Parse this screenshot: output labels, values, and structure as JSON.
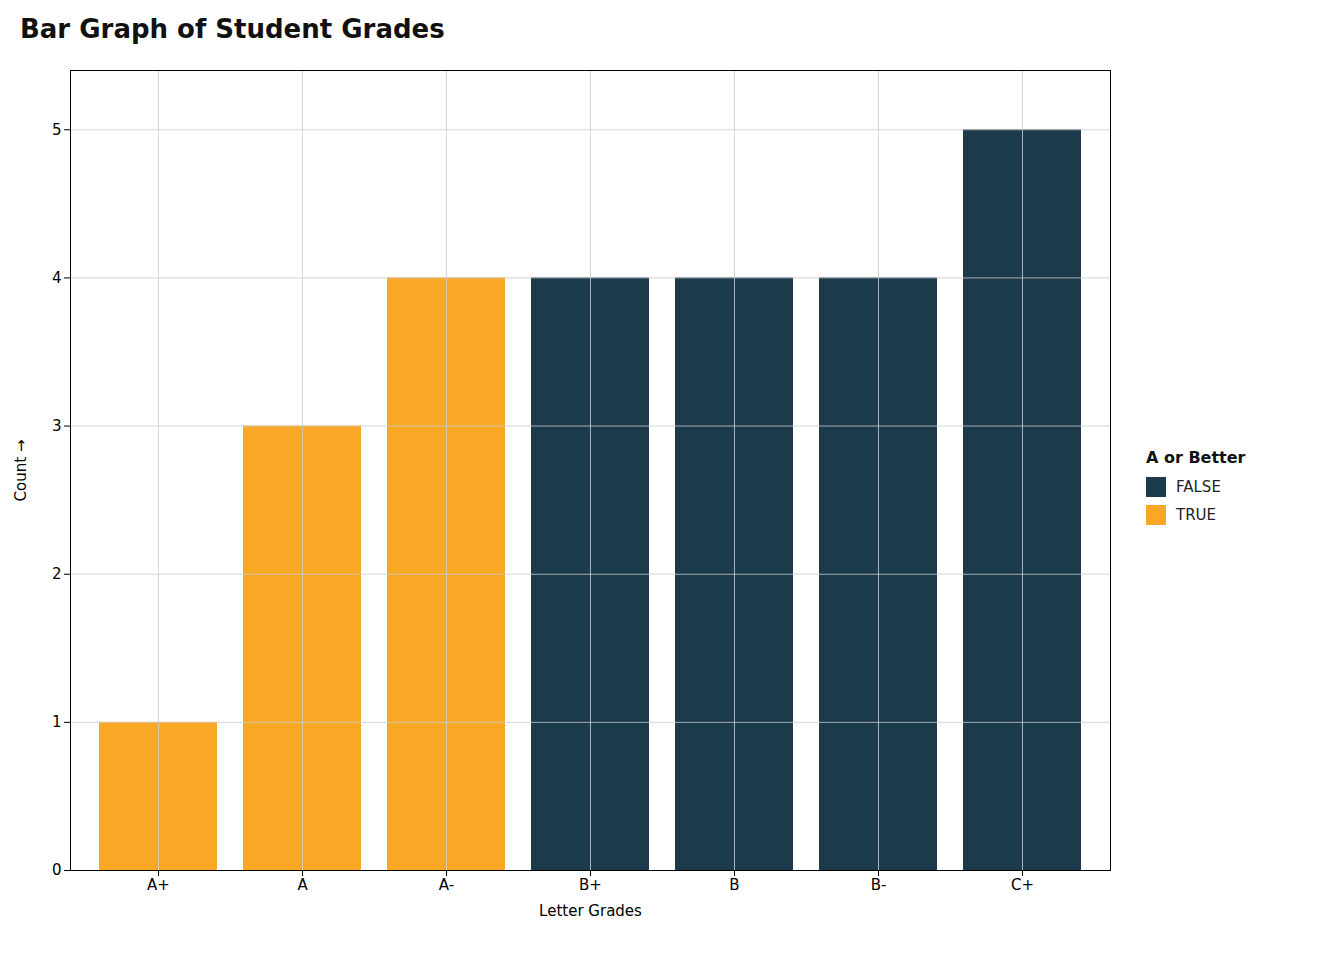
{
  "chart_data": {
    "type": "bar",
    "title": "Bar Graph of Student Grades",
    "xlabel": "Letter Grades",
    "ylabel": "Count",
    "categories": [
      "A+",
      "A",
      "A-",
      "B+",
      "B",
      "B-",
      "C+"
    ],
    "values": [
      1,
      3,
      4,
      4,
      4,
      4,
      5
    ],
    "colors": [
      "#F9A825",
      "#F9A825",
      "#F9A825",
      "#1B3A4B",
      "#1B3A4B",
      "#1B3A4B",
      "#1B3A4B"
    ],
    "ylim": [
      0,
      5.4
    ],
    "yticks": [
      0,
      1,
      2,
      3,
      4,
      5
    ],
    "grid": true,
    "legend": "right",
    "legend_title": "A or Better",
    "legend_labels": [
      "FALSE",
      "TRUE"
    ],
    "legend_colors": [
      "#1B3A4B",
      "#F9A825"
    ]
  }
}
